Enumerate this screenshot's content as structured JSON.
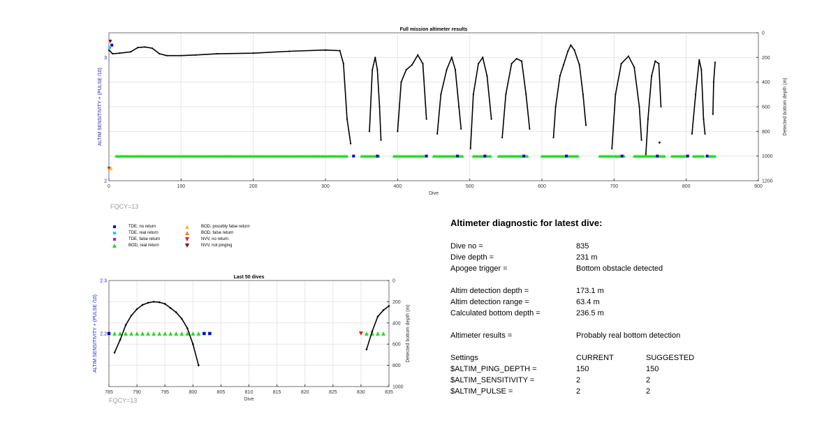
{
  "chart_data": [
    {
      "type": "line",
      "title": "Full mission altimeter results",
      "xlabel": "Dive",
      "ylabel_left": "ALTIM SENSITIVITY + (PULSE /10)",
      "ylabel_right": "Detected bottom depth (m)",
      "xlim": [
        0,
        900
      ],
      "ylim_left": [
        2,
        3.2
      ],
      "ylim_right": [
        1200,
        0
      ],
      "xticks": [
        0,
        100,
        200,
        300,
        400,
        500,
        600,
        700,
        800,
        900
      ],
      "yticks_left": [
        2,
        3
      ],
      "yticks_right": [
        0,
        200,
        400,
        600,
        800,
        1000,
        1200
      ],
      "grid": true,
      "bottom_depth_segments": [
        [
          [
            0,
            140
          ],
          [
            5,
            170
          ],
          [
            15,
            165
          ],
          [
            30,
            155
          ],
          [
            40,
            120
          ],
          [
            50,
            115
          ],
          [
            60,
            125
          ],
          [
            70,
            170
          ],
          [
            80,
            185
          ],
          [
            100,
            185
          ],
          [
            120,
            180
          ],
          [
            150,
            170
          ],
          [
            200,
            165
          ],
          [
            250,
            150
          ],
          [
            300,
            140
          ],
          [
            320,
            145
          ],
          [
            325,
            250
          ],
          [
            330,
            700
          ],
          [
            335,
            900
          ]
        ],
        [
          [
            361,
            800
          ],
          [
            365,
            300
          ],
          [
            369,
            200
          ],
          [
            372,
            300
          ],
          [
            375,
            600
          ],
          [
            377,
            870
          ]
        ],
        [
          [
            400,
            800
          ],
          [
            405,
            400
          ],
          [
            412,
            300
          ],
          [
            420,
            260
          ],
          [
            428,
            180
          ],
          [
            435,
            250
          ],
          [
            440,
            700
          ]
        ],
        [
          [
            455,
            820
          ],
          [
            460,
            500
          ],
          [
            468,
            300
          ],
          [
            475,
            200
          ],
          [
            480,
            300
          ],
          [
            485,
            600
          ],
          [
            488,
            780
          ]
        ],
        [
          [
            501,
            940
          ],
          [
            505,
            500
          ],
          [
            512,
            250
          ],
          [
            518,
            200
          ],
          [
            524,
            350
          ],
          [
            530,
            700
          ]
        ],
        [
          [
            545,
            850
          ],
          [
            550,
            500
          ],
          [
            558,
            250
          ],
          [
            565,
            210
          ],
          [
            572,
            230
          ],
          [
            578,
            500
          ],
          [
            583,
            780
          ]
        ],
        [
          [
            616,
            850
          ],
          [
            619,
            600
          ],
          [
            625,
            350
          ],
          [
            630,
            260
          ],
          [
            636,
            150
          ],
          [
            640,
            100
          ],
          [
            645,
            140
          ],
          [
            652,
            260
          ],
          [
            657,
            500
          ],
          [
            661,
            750
          ]
        ],
        [
          [
            697,
            940
          ],
          [
            702,
            500
          ],
          [
            710,
            250
          ],
          [
            720,
            190
          ],
          [
            728,
            280
          ],
          [
            735,
            600
          ],
          [
            738,
            870
          ]
        ],
        [
          [
            744,
            990
          ],
          [
            747,
            700
          ],
          [
            752,
            350
          ],
          [
            757,
            230
          ],
          [
            762,
            250
          ],
          [
            765,
            600
          ]
        ],
        [
          [
            808,
            820
          ],
          [
            813,
            500
          ],
          [
            818,
            220
          ],
          [
            821,
            300
          ],
          [
            824,
            700
          ],
          [
            826,
            820
          ]
        ],
        [
          [
            837,
            660
          ],
          [
            838,
            400
          ],
          [
            840,
            240
          ]
        ]
      ],
      "bottom_depth_isolated": [
        [
          763,
          890
        ]
      ],
      "tde_no_return": [
        [
          4,
          3.1
        ],
        [
          339,
          2.2
        ],
        [
          372,
          2.2
        ],
        [
          440,
          2.2
        ],
        [
          483,
          2.2
        ],
        [
          521,
          2.2
        ],
        [
          575,
          2.2
        ],
        [
          634,
          2.2
        ],
        [
          711,
          2.2
        ],
        [
          760,
          2.2
        ],
        [
          802,
          2.2
        ],
        [
          829,
          2.2
        ]
      ],
      "tde_real_return": [
        [
          1,
          3.08
        ]
      ],
      "bod_real_return_spans": [
        [
          10,
          330
        ],
        [
          350,
          375
        ],
        [
          395,
          438
        ],
        [
          450,
          490
        ],
        [
          505,
          530
        ],
        [
          540,
          580
        ],
        [
          600,
          650
        ],
        [
          680,
          715
        ],
        [
          728,
          770
        ],
        [
          780,
          800
        ],
        [
          810,
          825
        ],
        [
          830,
          840
        ]
      ],
      "bod_possibly_false": [
        [
          3,
          2.1
        ]
      ],
      "nvv_no_return": [
        [
          0,
          2.1
        ]
      ],
      "nvv_not_pinging": [
        [
          2,
          3.13
        ]
      ]
    },
    {
      "type": "line",
      "title": "Last 50 dives",
      "xlabel": "Dive",
      "ylabel_left": "ALTIM SENSITIVITY + (PULSE /10)",
      "ylabel_right": "Detected bottom depth (m)",
      "xlim": [
        785,
        835
      ],
      "ylim_left": [
        2.1,
        2.3
      ],
      "ylim_right": [
        1000,
        0
      ],
      "xticks": [
        785,
        790,
        795,
        800,
        805,
        810,
        815,
        820,
        825,
        830,
        835
      ],
      "yticks_left": [
        2.2,
        2.3
      ],
      "yticks_right": [
        0,
        200,
        400,
        600,
        800,
        1000
      ],
      "grid": true,
      "bottom_depth_segments": [
        [
          [
            786,
            680
          ],
          [
            787,
            560
          ],
          [
            788,
            420
          ],
          [
            789,
            330
          ],
          [
            790,
            270
          ],
          [
            791,
            230
          ],
          [
            792,
            210
          ],
          [
            793,
            200
          ],
          [
            794,
            205
          ],
          [
            795,
            220
          ],
          [
            796,
            260
          ],
          [
            797,
            300
          ],
          [
            798,
            360
          ],
          [
            799,
            450
          ],
          [
            800,
            600
          ],
          [
            801,
            800
          ]
        ],
        [
          [
            831,
            650
          ],
          [
            832,
            480
          ],
          [
            833,
            340
          ],
          [
            834,
            280
          ],
          [
            835,
            240
          ]
        ]
      ],
      "tde_no_return": [
        785,
        802,
        803
      ],
      "bod_real_return": [
        786,
        787,
        788,
        789,
        790,
        791,
        792,
        793,
        794,
        795,
        796,
        797,
        798,
        799,
        800,
        801,
        831,
        832,
        833,
        834
      ],
      "nvv_no_return": [
        830
      ]
    }
  ],
  "fqcy_top": "FQCY=13",
  "fqcy_bottom": "FQCY=13",
  "legend": [
    {
      "label": "TDE, no return",
      "marker": "square",
      "color": "#0000e0"
    },
    {
      "label": "TDE, real return",
      "marker": "square",
      "color": "#27c9f2"
    },
    {
      "label": "TDE, false return",
      "marker": "square",
      "color": "#8a2be2"
    },
    {
      "label": "BOD, real return",
      "marker": "triangle-up",
      "color": "#22dd22"
    },
    {
      "label": "BOD, possibly false return",
      "marker": "triangle-up",
      "color": "#f2c12e"
    },
    {
      "label": "BOD, false return",
      "marker": "triangle-up",
      "color": "#f08020"
    },
    {
      "label": "NVV, no return",
      "marker": "triangle-down",
      "color": "#e02020"
    },
    {
      "label": "NVV, not pinging",
      "marker": "triangle-down",
      "color": "#7a0a0a"
    }
  ],
  "diagnostic": {
    "title": "Altimeter diagnostic for latest dive:",
    "rows": [
      {
        "label": "Dive no =",
        "value": "835"
      },
      {
        "label": "Dive depth =",
        "value": "231 m"
      },
      {
        "label": "Apogee trigger =",
        "value": "Bottom obstacle detected"
      },
      {
        "label": "Altim detection depth =",
        "value": "173.1 m"
      },
      {
        "label": "Altim detection range =",
        "value": "63.4 m"
      },
      {
        "label": "Calculated bottom depth =",
        "value": "236.5 m"
      },
      {
        "label": "Altimeter results =",
        "value": "Probably real bottom detection"
      }
    ],
    "settings_header": {
      "label": "Settings",
      "current": "CURRENT",
      "suggested": "SUGGESTED"
    },
    "settings": [
      {
        "label": "$ALTIM_PING_DEPTH =",
        "current": "150",
        "suggested": "150"
      },
      {
        "label": "$ALTIM_SENSITIVITY =",
        "current": "2",
        "suggested": "2"
      },
      {
        "label": "$ALTIM_PULSE =",
        "current": "2",
        "suggested": "2"
      }
    ]
  },
  "colors": {
    "axis_left": "#2020c0",
    "grid": "#e6e6e6",
    "line": "#000000"
  }
}
